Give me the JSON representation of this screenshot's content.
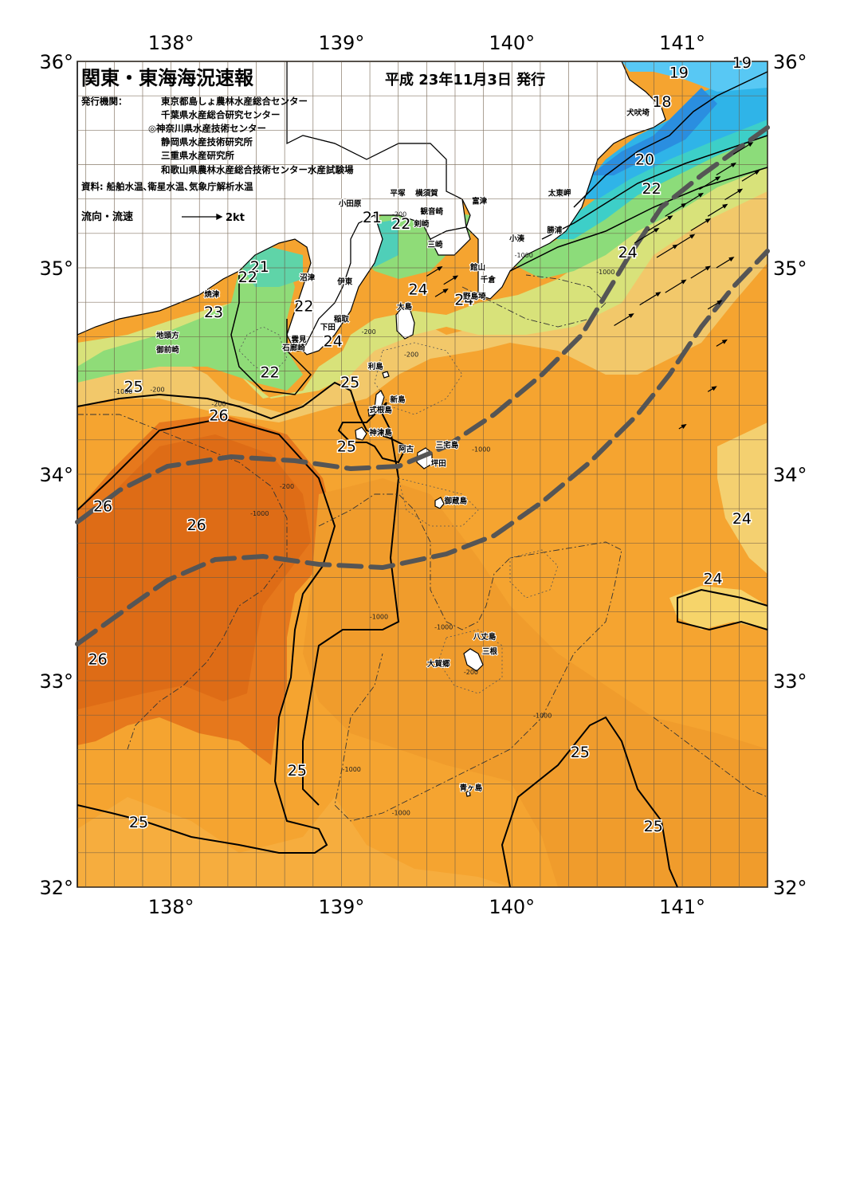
{
  "title": "関東・東海海況速報",
  "issue_date": "平成 23年11月3日 発行",
  "publisher_label": "発行機関：",
  "publishers": [
    "東京都島しょ農林水産総合センター",
    "千葉県水産総合研究センター",
    "◎神奈川県水産技術センター",
    "静岡県水産技術研究所",
    "三重県水産研究所",
    "和歌山県農林水産総合技術センター水産試験場"
  ],
  "sources": "資料: 船舶水温､衛星水温､気象庁解析水温",
  "legend": {
    "label": "流向・流速",
    "speed": "2kt"
  },
  "colors": {
    "t18": "#2f9de6",
    "t19": "#5cc8f2",
    "t20": "#3fd0c8",
    "t21": "#6fdca0",
    "t22": "#86e07a",
    "t23": "#c2e47c",
    "t24": "#f6dc72",
    "t24b": "#f2c05a",
    "t25": "#f5a430",
    "t26": "#e6781c",
    "t27": "#dc6614",
    "kuroshio": "#555555",
    "land": "#ffffff",
    "grid": "#6b5a45"
  },
  "axes": {
    "lon_ticks": [
      "138°",
      "139°",
      "140°",
      "141°"
    ],
    "lat_ticks": [
      "36°",
      "35°",
      "34°",
      "33°",
      "32°"
    ]
  },
  "temperature_labels": [
    {
      "t": "19",
      "lon": 141.35,
      "lat": 35.97
    },
    {
      "t": "19",
      "lon": 140.98,
      "lat": 35.92
    },
    {
      "t": "18",
      "lon": 140.88,
      "lat": 35.78
    },
    {
      "t": "20",
      "lon": 140.78,
      "lat": 35.5
    },
    {
      "t": "22",
      "lon": 140.82,
      "lat": 35.36
    },
    {
      "t": "24",
      "lon": 140.68,
      "lat": 35.05
    },
    {
      "t": "21",
      "lon": 139.18,
      "lat": 35.22
    },
    {
      "t": "22",
      "lon": 139.35,
      "lat": 35.19
    },
    {
      "t": "21",
      "lon": 138.52,
      "lat": 34.98
    },
    {
      "t": "22",
      "lon": 138.45,
      "lat": 34.93
    },
    {
      "t": "23",
      "lon": 138.25,
      "lat": 34.76
    },
    {
      "t": "22",
      "lon": 138.78,
      "lat": 34.79
    },
    {
      "t": "24",
      "lon": 139.45,
      "lat": 34.87
    },
    {
      "t": "24",
      "lon": 139.72,
      "lat": 34.82
    },
    {
      "t": "24",
      "lon": 138.95,
      "lat": 34.62
    },
    {
      "t": "22",
      "lon": 138.58,
      "lat": 34.47
    },
    {
      "t": "25",
      "lon": 137.78,
      "lat": 34.4
    },
    {
      "t": "25",
      "lon": 139.05,
      "lat": 34.42
    },
    {
      "t": "26",
      "lon": 138.28,
      "lat": 34.26
    },
    {
      "t": "25",
      "lon": 139.03,
      "lat": 34.11
    },
    {
      "t": "26",
      "lon": 137.6,
      "lat": 33.82
    },
    {
      "t": "26",
      "lon": 138.15,
      "lat": 33.73
    },
    {
      "t": "24",
      "lon": 141.35,
      "lat": 33.76
    },
    {
      "t": "24",
      "lon": 141.18,
      "lat": 33.47
    },
    {
      "t": "26",
      "lon": 137.57,
      "lat": 33.08
    },
    {
      "t": "25",
      "lon": 138.74,
      "lat": 32.54
    },
    {
      "t": "25",
      "lon": 140.4,
      "lat": 32.63
    },
    {
      "t": "25",
      "lon": 137.81,
      "lat": 32.29
    },
    {
      "t": "25",
      "lon": 140.83,
      "lat": 32.27
    }
  ],
  "place_names": [
    {
      "t": "犬吠埼",
      "lon": 140.74,
      "lat": 35.74
    },
    {
      "t": "太東岬",
      "lon": 140.28,
      "lat": 35.35
    },
    {
      "t": "勝浦",
      "lon": 140.25,
      "lat": 35.17
    },
    {
      "t": "小湊",
      "lon": 140.03,
      "lat": 35.13
    },
    {
      "t": "富津",
      "lon": 139.81,
      "lat": 35.31
    },
    {
      "t": "横須賀",
      "lon": 139.5,
      "lat": 35.35
    },
    {
      "t": "観音崎",
      "lon": 139.53,
      "lat": 35.26
    },
    {
      "t": "平塚",
      "lon": 139.33,
      "lat": 35.35
    },
    {
      "t": "小田原",
      "lon": 139.05,
      "lat": 35.3
    },
    {
      "t": "剣崎",
      "lon": 139.47,
      "lat": 35.2
    },
    {
      "t": "三崎",
      "lon": 139.55,
      "lat": 35.1
    },
    {
      "t": "館山",
      "lon": 139.8,
      "lat": 34.99
    },
    {
      "t": "千倉",
      "lon": 139.86,
      "lat": 34.93
    },
    {
      "t": "野島埼",
      "lon": 139.78,
      "lat": 34.85
    },
    {
      "t": "沼津",
      "lon": 138.8,
      "lat": 34.94
    },
    {
      "t": "伊東",
      "lon": 139.02,
      "lat": 34.92
    },
    {
      "t": "焼津",
      "lon": 138.24,
      "lat": 34.86
    },
    {
      "t": "稲取",
      "lon": 139.0,
      "lat": 34.74
    },
    {
      "t": "下田",
      "lon": 138.92,
      "lat": 34.7
    },
    {
      "t": "雲見",
      "lon": 138.75,
      "lat": 34.64
    },
    {
      "t": "石廊崎",
      "lon": 138.72,
      "lat": 34.6
    },
    {
      "t": "地頭方",
      "lon": 137.98,
      "lat": 34.66
    },
    {
      "t": "御前崎",
      "lon": 137.98,
      "lat": 34.59
    },
    {
      "t": "大島",
      "lon": 139.37,
      "lat": 34.8
    },
    {
      "t": "利島",
      "lon": 139.2,
      "lat": 34.51
    },
    {
      "t": "新島",
      "lon": 139.33,
      "lat": 34.35
    },
    {
      "t": "式根島",
      "lon": 139.23,
      "lat": 34.3
    },
    {
      "t": "神津島",
      "lon": 139.23,
      "lat": 34.19
    },
    {
      "t": "阿古",
      "lon": 139.38,
      "lat": 34.11
    },
    {
      "t": "三宅島",
      "lon": 139.62,
      "lat": 34.13
    },
    {
      "t": "坪田",
      "lon": 139.57,
      "lat": 34.04
    },
    {
      "t": "御蔵島",
      "lon": 139.67,
      "lat": 33.86
    },
    {
      "t": "八丈島",
      "lon": 139.84,
      "lat": 33.2
    },
    {
      "t": "三根",
      "lon": 139.87,
      "lat": 33.13
    },
    {
      "t": "大賀郷",
      "lon": 139.57,
      "lat": 33.07
    },
    {
      "t": "青ヶ島",
      "lon": 139.76,
      "lat": 32.47
    }
  ],
  "depth_labels": [
    {
      "t": "-1000",
      "lon": 137.72,
      "lat": 34.39
    },
    {
      "t": "-200",
      "lon": 137.92,
      "lat": 34.4
    },
    {
      "t": "-200",
      "lon": 138.28,
      "lat": 34.33
    },
    {
      "t": "-200",
      "lon": 138.68,
      "lat": 33.93
    },
    {
      "t": "-1000",
      "lon": 138.52,
      "lat": 33.8
    },
    {
      "t": "-200",
      "lon": 139.34,
      "lat": 35.25
    },
    {
      "t": "-200",
      "lon": 139.41,
      "lat": 34.57
    },
    {
      "t": "-200",
      "lon": 139.16,
      "lat": 34.68
    },
    {
      "t": "-1000",
      "lon": 140.07,
      "lat": 35.05
    },
    {
      "t": "-1000",
      "lon": 140.55,
      "lat": 34.97
    },
    {
      "t": "-1000",
      "lon": 139.82,
      "lat": 34.11
    },
    {
      "t": "-1000",
      "lon": 139.22,
      "lat": 33.3
    },
    {
      "t": "-1000",
      "lon": 139.6,
      "lat": 33.25
    },
    {
      "t": "-200",
      "lon": 139.76,
      "lat": 33.03
    },
    {
      "t": "-1000",
      "lon": 140.18,
      "lat": 32.82
    },
    {
      "t": "-1000",
      "lon": 139.06,
      "lat": 32.56
    },
    {
      "t": "-1000",
      "lon": 139.35,
      "lat": 32.35
    }
  ]
}
